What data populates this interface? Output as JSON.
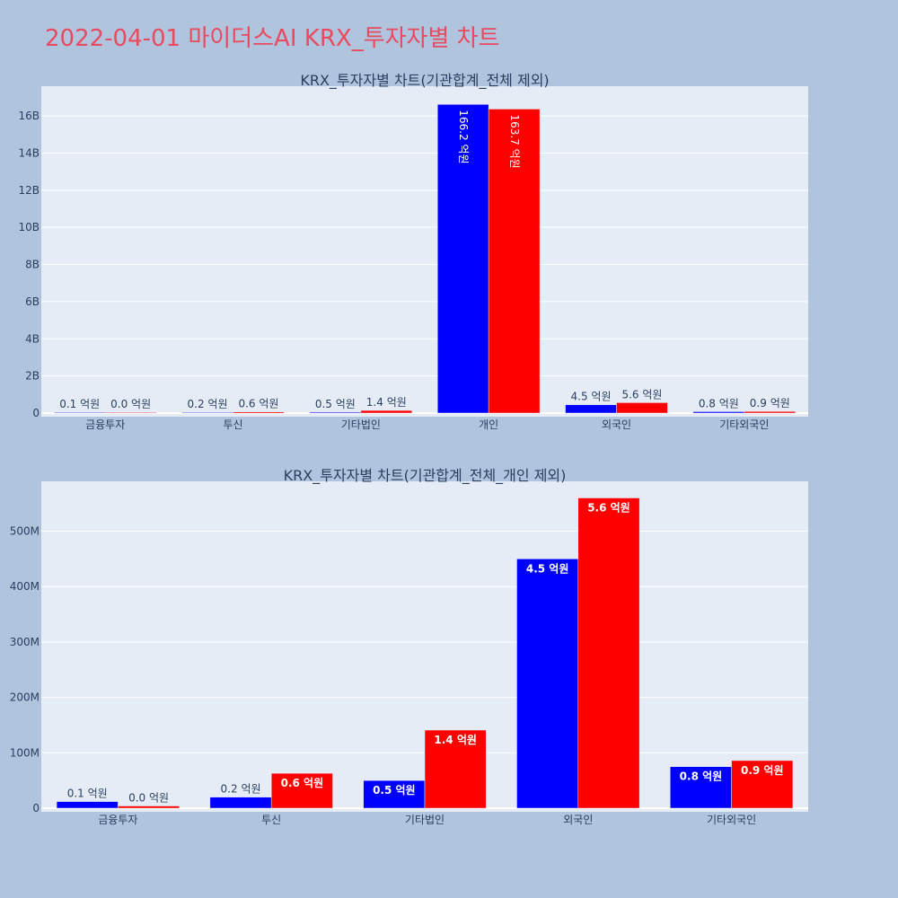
{
  "title": "2022-04-01 마이더스AI KRX_투자자별 차트",
  "colors": {
    "series1": "#0000ff",
    "series2": "#ff0000",
    "plot_bg": "#e5ecf6",
    "page_bg": "#b0c4de",
    "title": "#e84a5f"
  },
  "chart_data": [
    {
      "type": "bar",
      "title": "KRX_투자자별 차트(기관합계_전체 제외)",
      "categories": [
        "금융투자",
        "투신",
        "기타법인",
        "개인",
        "외국인",
        "기타외국인"
      ],
      "series": [
        {
          "values": [
            12000000,
            20000000,
            50000000,
            16620000000,
            450000000,
            75000000
          ],
          "labels": [
            "0.1 억원",
            "0.2 억원",
            "0.5 억원",
            "166.2 억원",
            "4.5 억원",
            "0.8 억원"
          ]
        },
        {
          "values": [
            4000000,
            63000000,
            141000000,
            16370000000,
            560000000,
            86000000
          ],
          "labels": [
            "0.0 억원",
            "0.6 억원",
            "1.4 억원",
            "163.7 억원",
            "5.6 억원",
            "0.9 억원"
          ]
        }
      ],
      "ylim": [
        0,
        17600000000
      ],
      "yticks": [
        0,
        2000000000,
        4000000000,
        6000000000,
        8000000000,
        10000000000,
        12000000000,
        14000000000,
        16000000000
      ],
      "ytick_labels": [
        "0",
        "2B",
        "4B",
        "6B",
        "8B",
        "10B",
        "12B",
        "14B",
        "16B"
      ],
      "grid": true
    },
    {
      "type": "bar",
      "title": "KRX_투자자별 차트(기관합계_전체_개인 제외)",
      "categories": [
        "금융투자",
        "투신",
        "기타법인",
        "외국인",
        "기타외국인"
      ],
      "series": [
        {
          "values": [
            12000000,
            20000000,
            50000000,
            450000000,
            75000000
          ],
          "labels": [
            "0.1 억원",
            "0.2 억원",
            "0.5 억원",
            "4.5 억원",
            "0.8 억원"
          ]
        },
        {
          "values": [
            4000000,
            63000000,
            141000000,
            560000000,
            86000000
          ],
          "labels": [
            "0.0 억원",
            "0.6 억원",
            "1.4 억원",
            "5.6 억원",
            "0.9 억원"
          ]
        }
      ],
      "ylim": [
        0,
        590000000
      ],
      "yticks": [
        0,
        100000000,
        200000000,
        300000000,
        400000000,
        500000000
      ],
      "ytick_labels": [
        "0",
        "100M",
        "200M",
        "300M",
        "400M",
        "500M"
      ],
      "grid": true
    }
  ]
}
